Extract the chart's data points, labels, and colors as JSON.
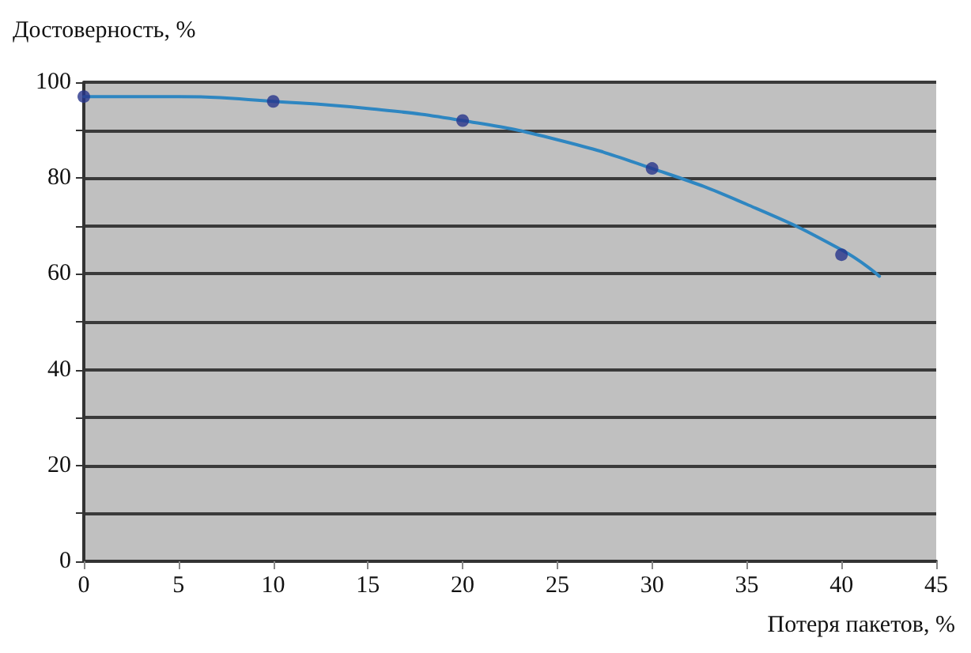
{
  "chart_data": {
    "type": "scatter",
    "xlabel": "Потеря пакетов, %",
    "ylabel": "Достоверность, %",
    "series": [
      {
        "x": [
          0,
          10,
          20,
          30,
          40
        ],
        "values": [
          97,
          96,
          92,
          82,
          64
        ],
        "color": "#27348b",
        "marker": "circle"
      },
      {
        "type": "line",
        "x": [
          0,
          5,
          10,
          15,
          20,
          25,
          30,
          35,
          40,
          42
        ],
        "values": [
          97,
          97,
          96,
          94.5,
          92,
          88,
          82,
          74.5,
          65,
          59.5
        ],
        "color": "#2e86c1",
        "marker": "none",
        "line_style": "solid"
      }
    ],
    "xlim": [
      0,
      45
    ],
    "xticks": [
      0,
      5,
      10,
      15,
      20,
      25,
      30,
      35,
      40,
      45
    ],
    "ylim": [
      0,
      100
    ],
    "yticks": [
      0,
      {
        "value": 10,
        "label": null
      },
      20,
      {
        "value": 30,
        "label": null
      },
      40,
      {
        "value": 50,
        "label": null
      },
      60,
      {
        "value": 70,
        "label": null
      },
      80,
      {
        "value": 90,
        "label": null
      },
      100
    ],
    "grid": "y"
  }
}
